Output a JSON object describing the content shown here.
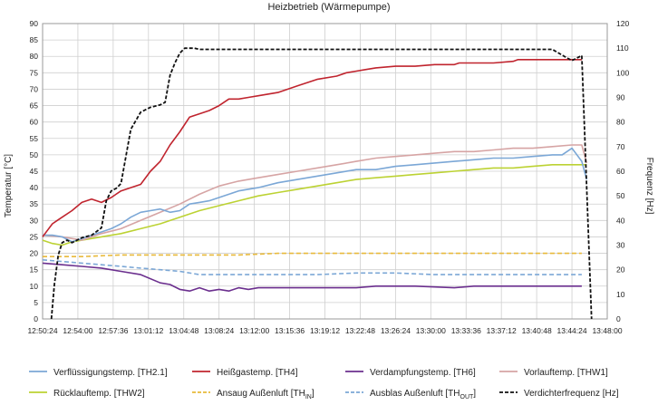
{
  "chart_data": {
    "type": "line",
    "title": "Heizbetrieb (Wärmepumpe)",
    "ylabel": "Temperatur [°C]",
    "y2label": "Frequenz [Hz]",
    "ylim": [
      0,
      90
    ],
    "y2lim": [
      0,
      120
    ],
    "xlim_minutes": [
      0,
      57.6
    ],
    "x_ticks": [
      "12:50:24",
      "12:54:00",
      "12:57:36",
      "13:01:12",
      "13:04:48",
      "13:08:24",
      "13:12:00",
      "13:15:36",
      "13:19:12",
      "13:22:48",
      "13:26:24",
      "13:30:00",
      "13:33:36",
      "13:37:12",
      "13:40:48",
      "13:44:24",
      "13:48:00"
    ],
    "y_ticks": [
      0,
      5,
      10,
      15,
      20,
      25,
      30,
      35,
      40,
      45,
      50,
      55,
      60,
      65,
      70,
      75,
      80,
      85,
      90
    ],
    "y2_ticks": [
      0,
      10,
      20,
      30,
      40,
      50,
      60,
      70,
      80,
      90,
      100,
      110,
      120
    ],
    "series": [
      {
        "name": "Verflüssigungstemp. [TH2.1]",
        "axis": "left",
        "color": "#7ba7d6",
        "dash": "solid",
        "x": [
          0,
          1,
          2,
          3,
          4,
          5,
          6,
          7,
          8,
          9,
          10,
          11,
          12,
          13,
          14,
          15,
          16,
          17,
          18,
          19,
          20,
          22,
          24,
          26,
          28,
          30,
          32,
          34,
          36,
          38,
          40,
          42,
          44,
          46,
          48,
          50,
          52,
          53,
          54,
          55,
          55.5
        ],
        "values": [
          25.5,
          25.5,
          25,
          23.5,
          24.5,
          25.5,
          26.5,
          27.5,
          29,
          31,
          32.5,
          33,
          33.5,
          32.5,
          33,
          35,
          35.5,
          36,
          37,
          38,
          39,
          40,
          41.5,
          42.5,
          43.5,
          44.5,
          45.5,
          45.5,
          46.5,
          47,
          47.5,
          48,
          48.5,
          49,
          49,
          49.5,
          50,
          50,
          52,
          48,
          42.5
        ]
      },
      {
        "name": "Heißgastemp. [TH4]",
        "axis": "left",
        "color": "#c0242e",
        "dash": "solid",
        "x": [
          0,
          0.5,
          1,
          1.5,
          2,
          3,
          4,
          5,
          6,
          7,
          8,
          9,
          10,
          11,
          12,
          13,
          14,
          15,
          16,
          17,
          18,
          19,
          20,
          21,
          22,
          24,
          26,
          28,
          30,
          31,
          32,
          33,
          34,
          36,
          38,
          40,
          42,
          42.5,
          46,
          48,
          48.5,
          50,
          52,
          54,
          55
        ],
        "values": [
          25,
          27,
          29,
          30,
          31,
          33,
          35.5,
          36.5,
          35.5,
          37,
          39,
          40,
          41,
          45,
          48,
          53,
          57,
          61.5,
          62.5,
          63.5,
          65,
          67,
          67,
          67.5,
          68,
          69,
          71,
          73,
          74,
          75,
          75.5,
          76,
          76.5,
          77,
          77,
          77.5,
          77.5,
          78,
          78,
          78.5,
          79,
          79,
          79,
          79,
          79
        ]
      },
      {
        "name": "Verdampfungstemp. [TH6]",
        "axis": "left",
        "color": "#6b2f8e",
        "dash": "solid",
        "x": [
          0,
          2,
          4,
          6,
          8,
          10,
          12,
          13,
          14,
          15,
          16,
          17,
          18,
          19,
          20,
          21,
          22,
          26,
          30,
          32,
          34,
          38,
          42,
          44,
          46,
          50,
          55
        ],
        "values": [
          17,
          16.5,
          16,
          15.5,
          14.5,
          13.5,
          11,
          10.5,
          9,
          8.5,
          9.5,
          8.5,
          9,
          8.5,
          9.5,
          9,
          9.5,
          9.5,
          9.5,
          9.5,
          10,
          10,
          9.5,
          10,
          10,
          10,
          10
        ]
      },
      {
        "name": "Vorlauftemp. [THW1]",
        "axis": "left",
        "color": "#d6a4a4",
        "dash": "solid",
        "x": [
          0,
          2,
          4,
          6,
          8,
          10,
          12,
          14,
          16,
          18,
          20,
          22,
          24,
          26,
          28,
          30,
          32,
          34,
          36,
          38,
          40,
          42,
          44,
          46,
          48,
          50,
          52,
          54,
          55,
          55.5
        ],
        "values": [
          25.5,
          25,
          24,
          26,
          27.5,
          30,
          32.5,
          35,
          38,
          40.5,
          42,
          43,
          44,
          45,
          46,
          47,
          48,
          49,
          49.5,
          50,
          50.5,
          51,
          51,
          51.5,
          52,
          52,
          52.5,
          53,
          53,
          47.5
        ]
      },
      {
        "name": "Rücklauftemp. [THW2]",
        "axis": "left",
        "color": "#bcd233",
        "dash": "solid",
        "x": [
          0,
          1,
          2,
          3,
          4,
          6,
          8,
          10,
          12,
          14,
          16,
          18,
          20,
          22,
          24,
          26,
          28,
          30,
          32,
          34,
          36,
          38,
          40,
          42,
          44,
          46,
          48,
          50,
          52,
          54,
          55,
          55.5
        ],
        "values": [
          24,
          23,
          22.5,
          23.5,
          24,
          25,
          26,
          27.5,
          29,
          31,
          33,
          34.5,
          36,
          37.5,
          38.5,
          39.5,
          40.5,
          41.5,
          42.5,
          43,
          43.5,
          44,
          44.5,
          45,
          45.5,
          46,
          46,
          46.5,
          47,
          47,
          47,
          47
        ]
      },
      {
        "name": "Ansaug Außenluft [TH_IN]",
        "axis": "left",
        "color": "#e8b93a",
        "dash": "dashed",
        "x": [
          0,
          4,
          8,
          12,
          16,
          20,
          24,
          28,
          32,
          36,
          40,
          44,
          48,
          52,
          55
        ],
        "values": [
          19,
          19,
          19.5,
          19.5,
          19.5,
          19.5,
          20,
          20,
          20,
          20,
          20,
          20,
          20,
          20,
          20
        ]
      },
      {
        "name": "Ausblas Außenluft [TH_OUT]",
        "axis": "left",
        "color": "#7ba7d6",
        "dash": "dashed",
        "x": [
          0,
          2,
          4,
          6,
          8,
          10,
          12,
          14,
          16,
          20,
          24,
          28,
          32,
          36,
          40,
          44,
          48,
          52,
          55
        ],
        "values": [
          18,
          17.5,
          17,
          16.5,
          16,
          15.5,
          15,
          14.5,
          13.5,
          13.5,
          13.5,
          13.5,
          14,
          14,
          13.5,
          13.5,
          13.5,
          13.5,
          13.5
        ]
      },
      {
        "name": "Verdichterfrequenz [Hz]",
        "axis": "right",
        "color": "#111111",
        "dash": "dashed",
        "x": [
          0.9,
          1.2,
          1.6,
          2.0,
          2.5,
          3,
          3.5,
          4,
          5,
          6,
          6.5,
          7,
          7.5,
          8,
          9,
          10,
          11,
          12,
          12.5,
          13,
          13.5,
          14,
          14.5,
          15,
          15.5,
          16,
          17,
          18,
          20,
          25,
          30,
          35,
          40,
          45,
          50,
          52,
          53.5,
          54,
          54.5,
          55,
          56
        ],
        "values": [
          0,
          14,
          26,
          31,
          32,
          31,
          32,
          33,
          34,
          37,
          48,
          52,
          53,
          55,
          77,
          84,
          86,
          87,
          88,
          99,
          104,
          108,
          110,
          110,
          110,
          109.5,
          109.5,
          109.5,
          109.5,
          109.5,
          109.5,
          109.5,
          109.5,
          109.5,
          109.5,
          109.5,
          106,
          105,
          106,
          107,
          0
        ]
      }
    ],
    "legend": [
      {
        "label": "Verflüssigungstemp. [TH2.1]",
        "sub": "",
        "color": "#7ba7d6",
        "dash": "solid"
      },
      {
        "label": "Heißgastemp. [TH4]",
        "sub": "",
        "color": "#c0242e",
        "dash": "solid"
      },
      {
        "label": "Verdampfungstemp. [TH6]",
        "sub": "",
        "color": "#6b2f8e",
        "dash": "solid"
      },
      {
        "label": "Vorlauftemp. [THW1]",
        "sub": "",
        "color": "#d6a4a4",
        "dash": "solid"
      },
      {
        "label": "Rücklauftemp. [THW2]",
        "sub": "",
        "color": "#bcd233",
        "dash": "solid"
      },
      {
        "label": "Ansaug Außenluft [TH",
        "sub": "IN",
        "suffix": "]",
        "color": "#e8b93a",
        "dash": "dashed"
      },
      {
        "label": "Ausblas Außenluft [TH",
        "sub": "OUT",
        "suffix": "]",
        "color": "#7ba7d6",
        "dash": "dashed"
      },
      {
        "label": "Verdichterfrequenz [Hz]",
        "sub": "",
        "color": "#111111",
        "dash": "dashed"
      }
    ]
  }
}
